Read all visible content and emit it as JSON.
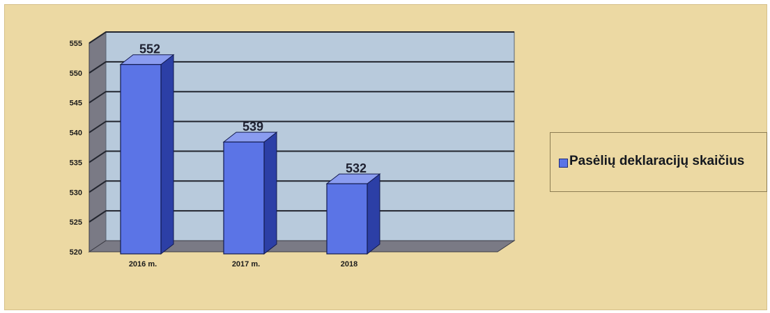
{
  "chart_data": {
    "type": "bar",
    "categories": [
      "2016 m.",
      "2017 m.",
      "2018"
    ],
    "series": [
      {
        "name": "Pasėlių deklaracijų skaičius",
        "values": [
          552,
          539,
          532
        ],
        "color": "#5b74e6"
      }
    ],
    "data_labels": [
      "552",
      "539",
      "532"
    ],
    "y_ticks": [
      "555",
      "550",
      "545",
      "540",
      "535",
      "530",
      "525",
      "520"
    ],
    "ylim": [
      520,
      555
    ],
    "title": "",
    "xlabel": "",
    "ylabel": "",
    "grid": true,
    "legend_position": "right",
    "colors": {
      "background": "#ecd9a3",
      "plot_back": "#b8cadc",
      "plot_wall": "#7a7a85",
      "bar_front": "#5b74e6",
      "bar_side": "#2c3fa6",
      "bar_top": "#8a9cf0",
      "gridline": "#22252e"
    }
  }
}
